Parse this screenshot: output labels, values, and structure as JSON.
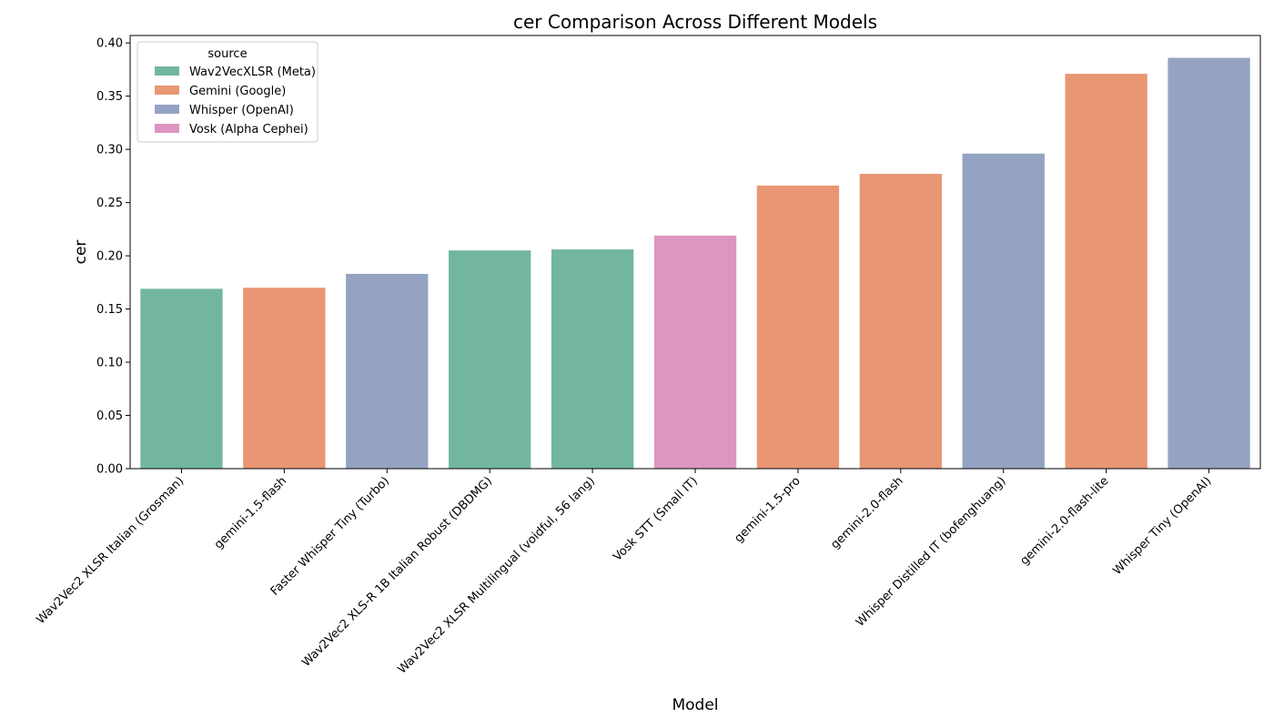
{
  "chart_data": {
    "type": "bar",
    "title": "cer Comparison Across Different Models",
    "xlabel": "Model",
    "ylabel": "cer",
    "ylim": [
      0,
      0.407
    ],
    "yticks": [
      0.0,
      0.05,
      0.1,
      0.15,
      0.2,
      0.25,
      0.3,
      0.35,
      0.4
    ],
    "ytick_labels": [
      "0.00",
      "0.05",
      "0.10",
      "0.15",
      "0.20",
      "0.25",
      "0.30",
      "0.35",
      "0.40"
    ],
    "grid": false,
    "legend": {
      "title": "source",
      "placement": "top-left",
      "entries": [
        {
          "label": "Wav2VecXLSR (Meta)",
          "color": "#66c2a5"
        },
        {
          "label": "Gemini (Google)",
          "color": "#fc8d62"
        },
        {
          "label": "Whisper (OpenAI)",
          "color": "#8da0cb"
        },
        {
          "label": "Vosk (Alpha Cephei)",
          "color": "#e78ac3"
        }
      ]
    },
    "categories": [
      "Wav2Vec2 XLSR Italian (Grosman)",
      "gemini-1.5-flash",
      "Faster Whisper Tiny (Turbo)",
      "Wav2Vec2 XLS-R 1B Italian Robust (DBDMG)",
      "Wav2Vec2 XLSR Multilingual (voidful, 56 lang)",
      "Vosk STT (Small IT)",
      "gemini-1.5-pro",
      "gemini-2.0-flash",
      "Whisper Distilled IT (bofenghuang)",
      "gemini-2.0-flash-lite",
      "Whisper Tiny (OpenAI)"
    ],
    "values": [
      0.169,
      0.17,
      0.183,
      0.205,
      0.206,
      0.219,
      0.266,
      0.277,
      0.296,
      0.371,
      0.386
    ],
    "sources": [
      "Wav2VecXLSR (Meta)",
      "Gemini (Google)",
      "Whisper (OpenAI)",
      "Wav2VecXLSR (Meta)",
      "Wav2VecXLSR (Meta)",
      "Vosk (Alpha Cephei)",
      "Gemini (Google)",
      "Gemini (Google)",
      "Whisper (OpenAI)",
      "Gemini (Google)",
      "Whisper (OpenAI)"
    ],
    "bar_colors": {
      "Wav2VecXLSR (Meta)": "#72b6a1",
      "Gemini (Google)": "#e99675",
      "Whisper (OpenAI)": "#95a3c3",
      "Vosk (Alpha Cephei)": "#dc96c0"
    }
  }
}
